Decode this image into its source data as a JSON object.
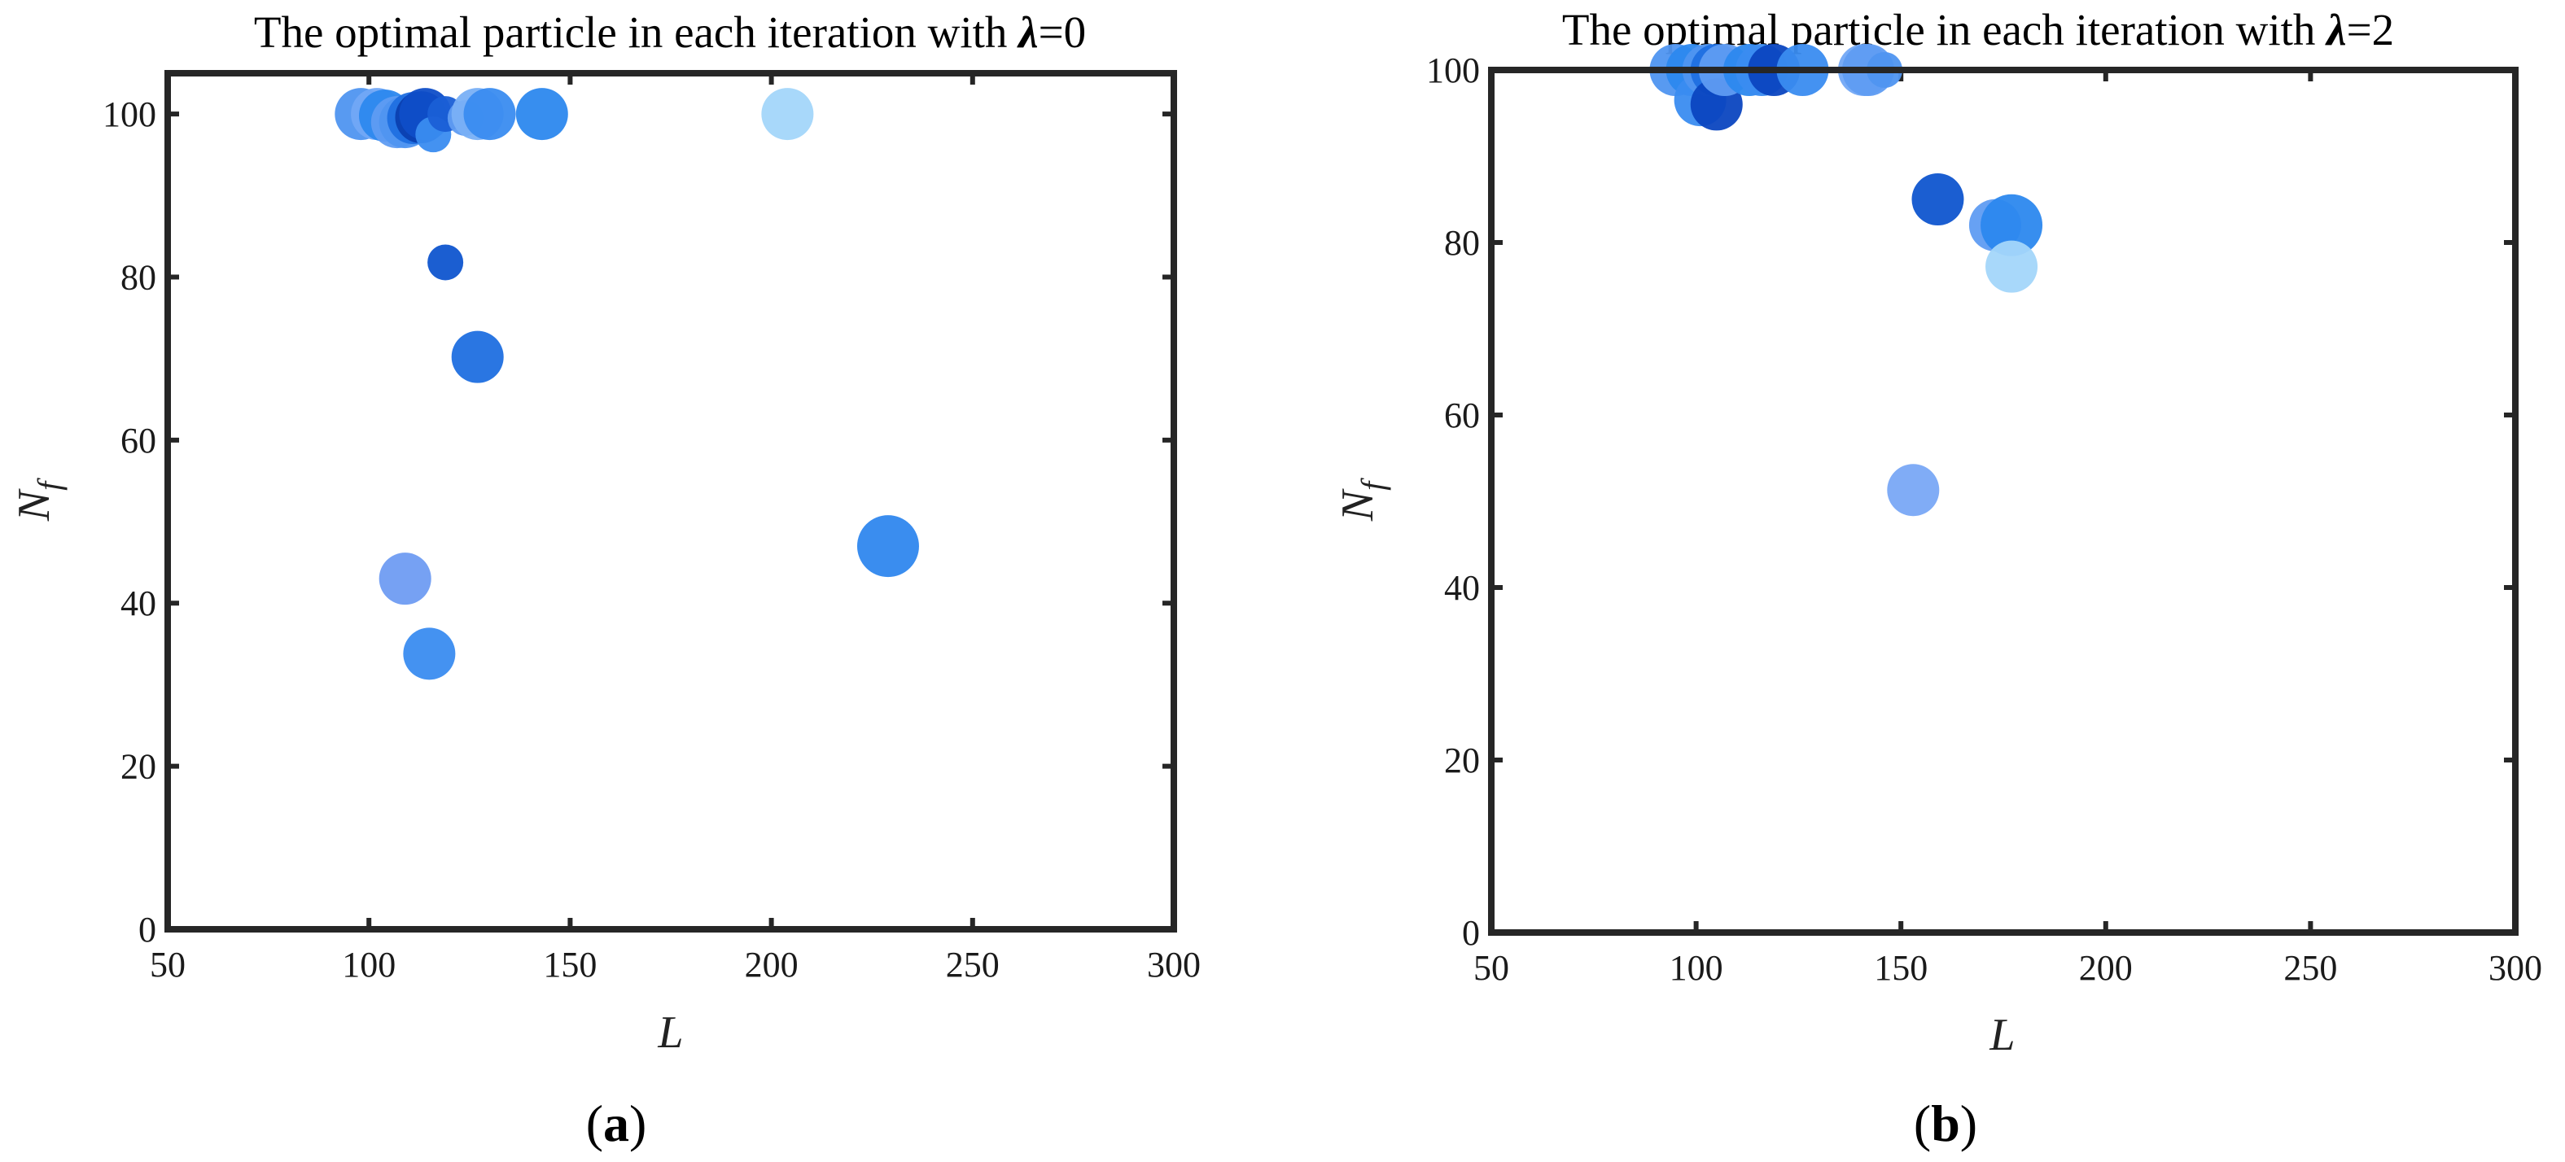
{
  "chart_data": [
    {
      "type": "scatter",
      "title_prefix": "The optimal particle in each iteration with ",
      "title_symbol": "λ",
      "title_suffix": "=0",
      "xlabel": "L",
      "ylabel_base": "N",
      "ylabel_sub": "f",
      "xlim": [
        50,
        300
      ],
      "ylim": [
        0,
        105
      ],
      "xticks": [
        50,
        100,
        150,
        200,
        250,
        300
      ],
      "yticks": [
        0,
        20,
        40,
        60,
        80,
        100
      ],
      "grid": false,
      "panel_label": "a",
      "points": [
        {
          "x": 98,
          "y": 100,
          "size": 3,
          "color": "#4f95f0"
        },
        {
          "x": 102,
          "y": 100,
          "size": 3,
          "color": "#72a8f5"
        },
        {
          "x": 104,
          "y": 99.8,
          "size": 3,
          "color": "#2c88ee"
        },
        {
          "x": 107,
          "y": 99,
          "size": 3,
          "color": "#5f9cf2"
        },
        {
          "x": 109,
          "y": 99,
          "size": 3,
          "color": "#4f95f0"
        },
        {
          "x": 111,
          "y": 99.5,
          "size": 3,
          "color": "#1f6fe0"
        },
        {
          "x": 113,
          "y": 99.6,
          "size": 3,
          "color": "#0b3fb0"
        },
        {
          "x": 114,
          "y": 100,
          "size": 3,
          "color": "#0f4ec8"
        },
        {
          "x": 116,
          "y": 97.5,
          "size": 2,
          "color": "#3a8cf0"
        },
        {
          "x": 119,
          "y": 100,
          "size": 2,
          "color": "#1a5fd6"
        },
        {
          "x": 124,
          "y": 99.5,
          "size": 2,
          "color": "#5f9cf2"
        },
        {
          "x": 127,
          "y": 100,
          "size": 3,
          "color": "#79b0f6"
        },
        {
          "x": 130,
          "y": 100,
          "size": 3,
          "color": "#3a8cf0"
        },
        {
          "x": 143,
          "y": 100,
          "size": 3,
          "color": "#2c88ee"
        },
        {
          "x": 204,
          "y": 100,
          "size": 3,
          "color": "#a3d6fa"
        },
        {
          "x": 119,
          "y": 81.8,
          "size": 2,
          "color": "#0f55cf"
        },
        {
          "x": 127,
          "y": 70.2,
          "size": 3,
          "color": "#1f6fe0"
        },
        {
          "x": 229,
          "y": 47,
          "size": 4,
          "color": "#2f87ee"
        },
        {
          "x": 109,
          "y": 43,
          "size": 3,
          "color": "#6f9cf2"
        },
        {
          "x": 115,
          "y": 33.8,
          "size": 3,
          "color": "#3a8cf0"
        }
      ]
    },
    {
      "type": "scatter",
      "title_prefix": "The optimal particle in each iteration with ",
      "title_symbol": "λ",
      "title_suffix": "=2",
      "xlabel": "L",
      "ylabel_base": "N",
      "ylabel_sub": "f",
      "xlim": [
        50,
        300
      ],
      "ylim": [
        0,
        100
      ],
      "xticks": [
        50,
        100,
        150,
        200,
        250,
        300
      ],
      "yticks": [
        0,
        20,
        40,
        60,
        80,
        100
      ],
      "grid": false,
      "panel_label": "b",
      "points": [
        {
          "x": 95,
          "y": 100,
          "size": 3,
          "color": "#4f95f0"
        },
        {
          "x": 99,
          "y": 100,
          "size": 3,
          "color": "#2c88ee"
        },
        {
          "x": 101,
          "y": 96.5,
          "size": 3,
          "color": "#3a8cf0"
        },
        {
          "x": 103,
          "y": 100,
          "size": 3,
          "color": "#4f95f0"
        },
        {
          "x": 105,
          "y": 100,
          "size": 3,
          "color": "#1f6fe0"
        },
        {
          "x": 105,
          "y": 96,
          "size": 3,
          "color": "#0b46c0"
        },
        {
          "x": 107,
          "y": 100,
          "size": 3,
          "color": "#5f9cf2"
        },
        {
          "x": 113,
          "y": 100,
          "size": 3,
          "color": "#2c88ee"
        },
        {
          "x": 116,
          "y": 100,
          "size": 3,
          "color": "#3a8cf0"
        },
        {
          "x": 119,
          "y": 100,
          "size": 3,
          "color": "#0b46c0"
        },
        {
          "x": 126,
          "y": 100,
          "size": 3,
          "color": "#3a8cf0"
        },
        {
          "x": 141,
          "y": 100,
          "size": 3,
          "color": "#72a8f5"
        },
        {
          "x": 142,
          "y": 100,
          "size": 3,
          "color": "#5f9cf2"
        },
        {
          "x": 146,
          "y": 100,
          "size": 2,
          "color": "#4f95f0"
        },
        {
          "x": 159,
          "y": 85,
          "size": 3,
          "color": "#0f55cf"
        },
        {
          "x": 173,
          "y": 82,
          "size": 3,
          "color": "#5f9cf2"
        },
        {
          "x": 177,
          "y": 82,
          "size": 4,
          "color": "#2c88ee"
        },
        {
          "x": 177,
          "y": 77.2,
          "size": 3,
          "color": "#a3d6fa"
        },
        {
          "x": 153,
          "y": 51.3,
          "size": 3,
          "color": "#79a8f5"
        }
      ]
    }
  ]
}
